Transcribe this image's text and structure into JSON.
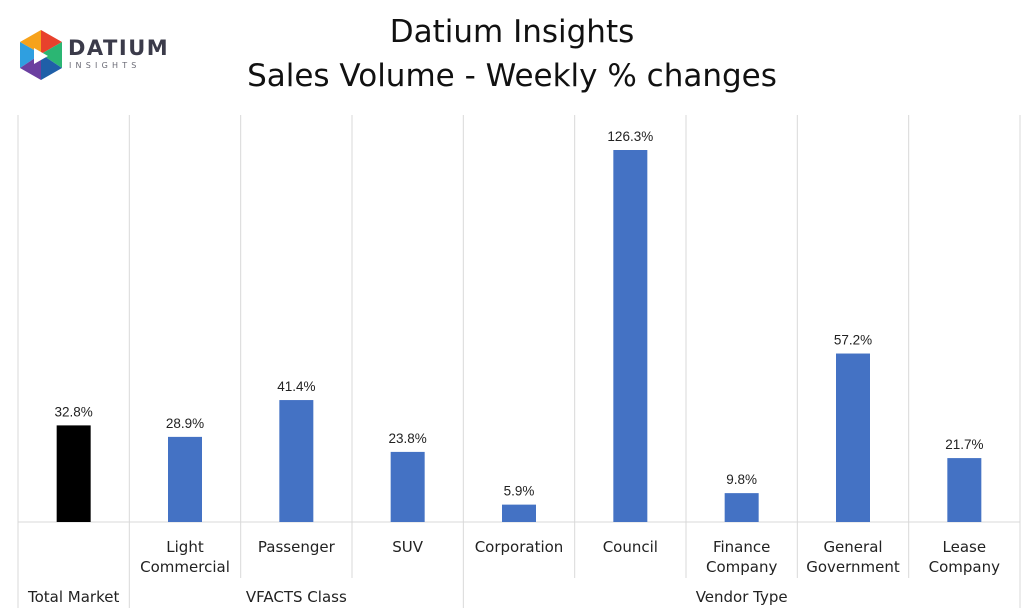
{
  "logo": {
    "brand": "DATIUM",
    "sub": "INSIGHTS",
    "icon": "datium-cube-logo-icon",
    "colors": [
      "#e8412c",
      "#f7a21b",
      "#2f9fe0",
      "#6b3fa0",
      "#2bb673",
      "#1f5fa8"
    ]
  },
  "header": {
    "title": "Datium Insights",
    "subtitle": "Sales Volume - Weekly % changes"
  },
  "chart_data": {
    "type": "bar",
    "grid": "vertical separators between categories",
    "value_labels": true,
    "categories": [
      "Total Market",
      "Light Commercial",
      "Passenger",
      "SUV",
      "Corporation",
      "Council",
      "Finance Company",
      "General Government",
      "Lease Company"
    ],
    "category_label_lines": [
      [
        ""
      ],
      [
        "Light",
        "Commercial"
      ],
      [
        "Passenger"
      ],
      [
        "SUV"
      ],
      [
        "Corporation"
      ],
      [
        "Council"
      ],
      [
        "Finance",
        "Company"
      ],
      [
        "General",
        "Government"
      ],
      [
        "Lease",
        "Company"
      ]
    ],
    "values": [
      32.8,
      28.9,
      41.4,
      23.8,
      5.9,
      126.3,
      9.8,
      57.2,
      21.7
    ],
    "value_labels_text": [
      "32.8%",
      "28.9%",
      "41.4%",
      "23.8%",
      "5.9%",
      "126.3%",
      "9.8%",
      "57.2%",
      "21.7%"
    ],
    "colors": [
      "#000000",
      "#4472c4",
      "#4472c4",
      "#4472c4",
      "#4472c4",
      "#4472c4",
      "#4472c4",
      "#4472c4",
      "#4472c4"
    ],
    "groups": [
      {
        "label": "Total Market",
        "start": 0,
        "end": 0
      },
      {
        "label": "VFACTS Class",
        "start": 1,
        "end": 3
      },
      {
        "label": "Vendor Type",
        "start": 4,
        "end": 8
      }
    ],
    "ylim": [
      0,
      136
    ],
    "title": "Sales Volume - Weekly % changes",
    "xlabel": "",
    "ylabel": ""
  }
}
